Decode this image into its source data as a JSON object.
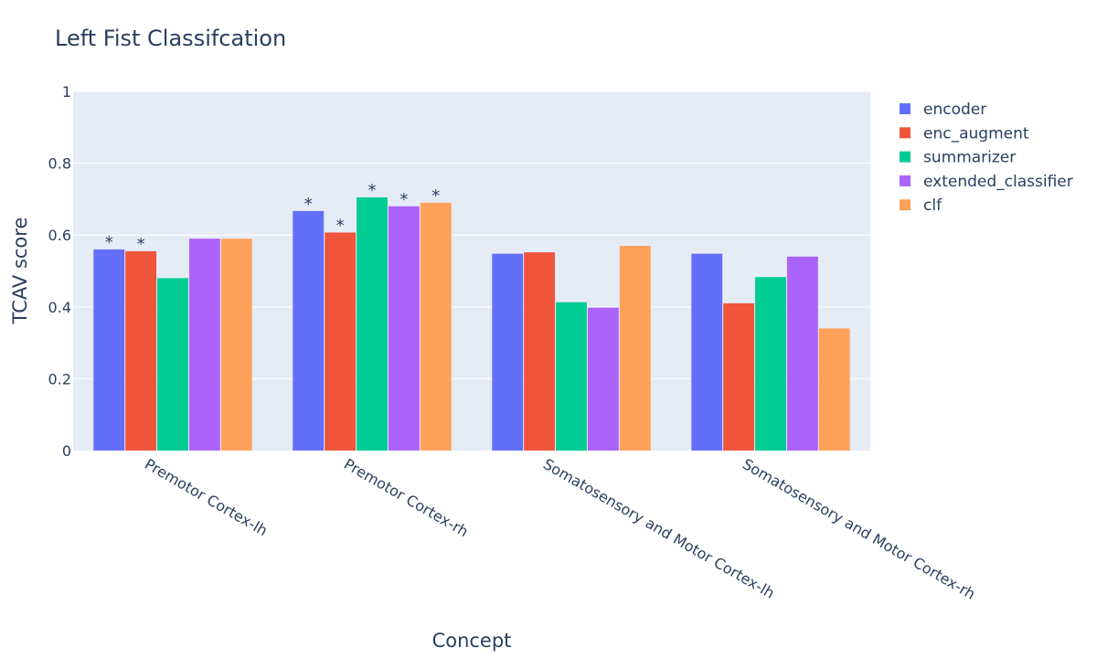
{
  "chart_data": {
    "type": "bar",
    "title": "Left Fist Classifcation",
    "xlabel": "Concept",
    "ylabel": "TCAV score",
    "ylim": [
      0,
      1
    ],
    "yticks": [
      "0",
      "0.2",
      "0.4",
      "0.6",
      "0.8",
      "1"
    ],
    "grid": true,
    "legend_position": "top-right",
    "categories": [
      "Premotor Cortex-lh",
      "Premotor Cortex-rh",
      "Somatosensory and Motor Cortex-lh",
      "Somatosensory and Motor Cortex-rh"
    ],
    "series": [
      {
        "name": "encoder",
        "color": "#636efa",
        "values": [
          0.56,
          0.667,
          0.548,
          0.548
        ],
        "significant": [
          true,
          true,
          false,
          false
        ]
      },
      {
        "name": "enc_augment",
        "color": "#ef553b",
        "values": [
          0.555,
          0.607,
          0.552,
          0.41
        ],
        "significant": [
          true,
          true,
          false,
          false
        ]
      },
      {
        "name": "summarizer",
        "color": "#00cc96",
        "values": [
          0.48,
          0.705,
          0.413,
          0.483
        ],
        "significant": [
          false,
          true,
          false,
          false
        ]
      },
      {
        "name": "extended_classifier",
        "color": "#ab63fa",
        "values": [
          0.59,
          0.68,
          0.398,
          0.54
        ],
        "significant": [
          false,
          true,
          false,
          false
        ]
      },
      {
        "name": "clf",
        "color": "#ffa15a",
        "values": [
          0.59,
          0.69,
          0.57,
          0.34
        ],
        "significant": [
          false,
          true,
          false,
          false
        ]
      }
    ],
    "significance_marker": "*"
  }
}
